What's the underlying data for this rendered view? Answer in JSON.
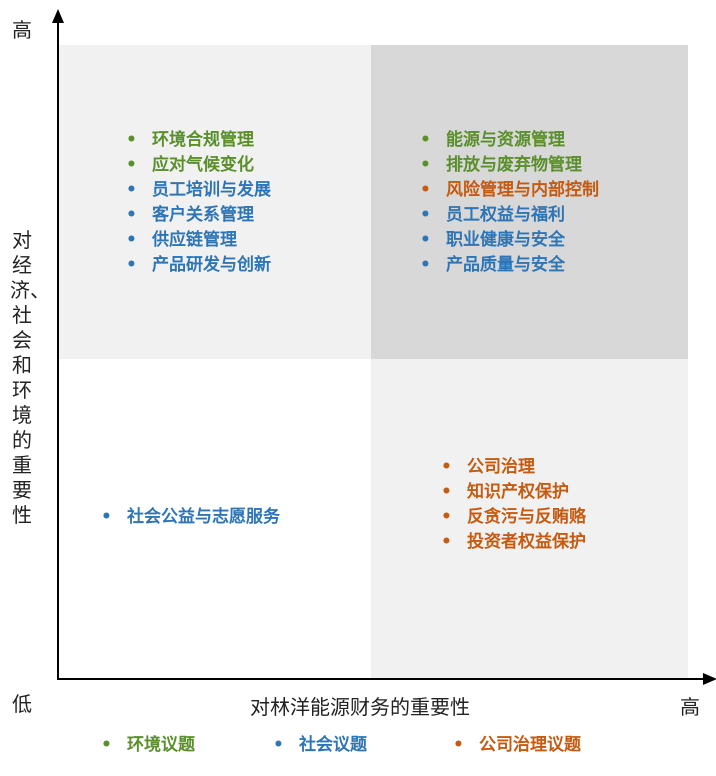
{
  "colors": {
    "env": "#5a8f2c",
    "social": "#2e75b6",
    "gov": "#c55a11"
  },
  "axes": {
    "y_high": "高",
    "y_title": "对经济、社会和环境的重要性",
    "x_low": "低",
    "x_title": "对林洋能源财务的重要性",
    "x_high": "高"
  },
  "quadrants": {
    "top_left": [
      {
        "text": "环境合规管理",
        "category": "env"
      },
      {
        "text": "应对气候变化",
        "category": "env"
      },
      {
        "text": "员工培训与发展",
        "category": "social"
      },
      {
        "text": "客户关系管理",
        "category": "social"
      },
      {
        "text": "供应链管理",
        "category": "social"
      },
      {
        "text": "产品研发与创新",
        "category": "social"
      }
    ],
    "top_right": [
      {
        "text": "能源与资源管理",
        "category": "env"
      },
      {
        "text": "排放与废弃物管理",
        "category": "env"
      },
      {
        "text": "风险管理与内部控制",
        "category": "gov"
      },
      {
        "text": "员工权益与福利",
        "category": "social"
      },
      {
        "text": "职业健康与安全",
        "category": "social"
      },
      {
        "text": "产品质量与安全",
        "category": "social"
      }
    ],
    "bottom_left": [
      {
        "text": "社会公益与志愿服务",
        "category": "social"
      }
    ],
    "bottom_right": [
      {
        "text": "公司治理",
        "category": "gov"
      },
      {
        "text": "知识产权保护",
        "category": "gov"
      },
      {
        "text": "反贪污与反贿赂",
        "category": "gov"
      },
      {
        "text": "投资者权益保护",
        "category": "gov"
      }
    ]
  },
  "legend": [
    {
      "text": "环境议题",
      "category": "env"
    },
    {
      "text": "社会议题",
      "category": "social"
    },
    {
      "text": "公司治理议题",
      "category": "gov"
    }
  ],
  "bullet": "•"
}
